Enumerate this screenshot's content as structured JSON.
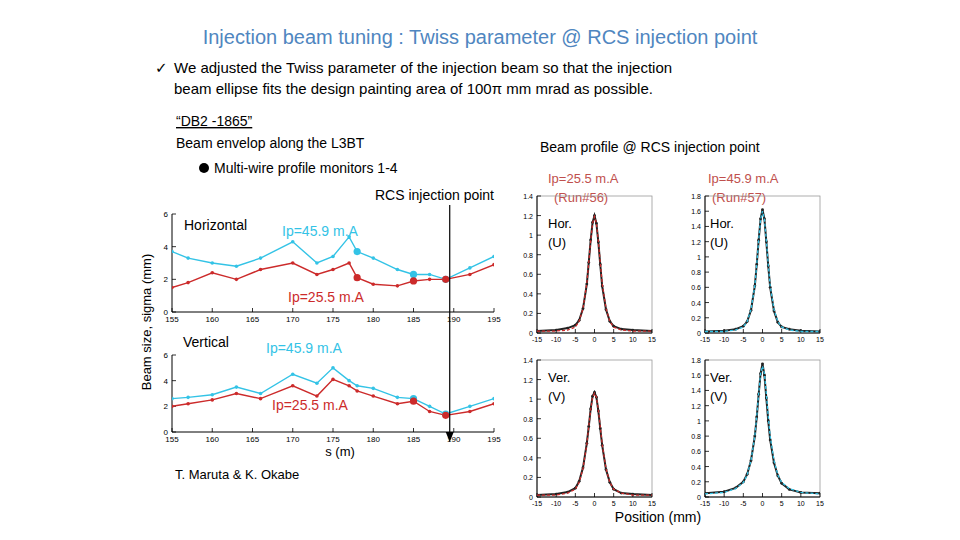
{
  "page": {
    "title": "Injection beam tuning : Twiss parameter @ RCS injection point",
    "check": "✓",
    "bullet": [
      "We adjusted the Twiss parameter of the injection beam so that the injection",
      "beam ellipse fits the design painting area of 100π mm mrad as possible."
    ],
    "envelope_heading": [
      "“DB2 -1865”",
      "Beam envelop along the L3BT"
    ],
    "monitor_legend": "Multi-wire profile monitors 1-4",
    "injection": {
      "text": "RCS injection point",
      "x": 189.5
    },
    "y_label": "Beam size, sigma (mm)",
    "x_label": "s (m)",
    "credit": "T. Maruta & K. Okabe",
    "profile_heading": "Beam profile @ RCS injection point",
    "profile_x_label": "Position (mm)",
    "columns": [
      [
        "Ip=25.5 m.A",
        "(Run#56)"
      ],
      [
        "Ip=45.9 m.A",
        "(Run#57)"
      ]
    ]
  },
  "chart_data": [
    {
      "type": "line",
      "title": "Horizontal",
      "x": [
        155,
        157,
        160,
        163,
        166,
        170,
        173,
        175,
        177,
        178,
        180,
        183,
        185,
        187,
        189,
        192,
        195
      ],
      "xlim": [
        155,
        195
      ],
      "xticks": [
        155,
        160,
        165,
        170,
        175,
        180,
        185,
        190,
        195
      ],
      "ylim": [
        0,
        6
      ],
      "yticks": [
        0,
        2,
        4,
        6
      ],
      "grid": false,
      "series": [
        {
          "name": "Ip=45.9 m.A",
          "color": "#33c3e6",
          "marker": "circle",
          "line_style": "solid",
          "values": [
            3.7,
            3.3,
            3.0,
            2.8,
            3.3,
            4.3,
            3.0,
            3.4,
            4.6,
            3.7,
            3.3,
            2.6,
            2.3,
            2.3,
            2.0,
            2.7,
            3.4
          ]
        },
        {
          "name": "Ip=25.5 m.A",
          "color": "#cc2b2b",
          "marker": "circle",
          "line_style": "solid",
          "values": [
            1.5,
            1.8,
            2.4,
            2.0,
            2.6,
            3.0,
            2.3,
            2.6,
            3.0,
            2.1,
            1.7,
            1.6,
            1.9,
            2.0,
            2.0,
            2.3,
            2.9
          ]
        },
        {
          "type": "scatter",
          "color": "#33c3e6",
          "marker": "circle",
          "values": [
            null,
            null,
            null,
            null,
            null,
            null,
            null,
            null,
            null,
            3.7,
            null,
            null,
            2.3,
            null,
            2.0,
            null,
            null
          ]
        },
        {
          "type": "scatter",
          "color": "#cc2b2b",
          "marker": "circle",
          "values": [
            null,
            null,
            null,
            null,
            null,
            null,
            null,
            null,
            null,
            2.1,
            null,
            null,
            1.9,
            null,
            2.0,
            null,
            null
          ]
        }
      ]
    },
    {
      "type": "line",
      "title": "Vertical",
      "x": [
        155,
        157,
        160,
        163,
        166,
        170,
        173,
        175,
        177,
        178,
        180,
        183,
        185,
        187,
        189,
        192,
        195
      ],
      "xlim": [
        155,
        195
      ],
      "xticks": [
        155,
        160,
        165,
        170,
        175,
        180,
        185,
        190,
        195
      ],
      "ylim": [
        0,
        6
      ],
      "yticks": [
        0,
        2,
        4,
        6
      ],
      "grid": false,
      "series": [
        {
          "name": "Ip=45.9 m.A",
          "color": "#33c3e6",
          "marker": "circle",
          "line_style": "solid",
          "values": [
            2.6,
            2.7,
            2.9,
            3.5,
            3.0,
            4.5,
            3.8,
            5.0,
            4.0,
            3.6,
            3.4,
            2.7,
            2.6,
            2.0,
            1.4,
            2.0,
            2.6
          ]
        },
        {
          "name": "Ip=25.5 m.A",
          "color": "#cc2b2b",
          "marker": "circle",
          "line_style": "solid",
          "values": [
            2.0,
            2.2,
            2.5,
            3.0,
            2.6,
            3.6,
            2.8,
            4.1,
            3.6,
            3.2,
            2.8,
            2.2,
            2.4,
            1.6,
            1.3,
            1.6,
            2.2
          ]
        },
        {
          "type": "scatter",
          "color": "#33c3e6",
          "marker": "circle",
          "values": [
            null,
            null,
            null,
            null,
            null,
            null,
            null,
            null,
            null,
            null,
            null,
            null,
            2.6,
            null,
            1.4,
            null,
            null
          ]
        },
        {
          "type": "scatter",
          "color": "#cc2b2b",
          "marker": "circle",
          "values": [
            null,
            null,
            null,
            null,
            null,
            null,
            null,
            null,
            null,
            null,
            null,
            null,
            2.4,
            null,
            1.3,
            null,
            null
          ]
        }
      ]
    },
    {
      "type": "line",
      "title": [
        "Hor.",
        "(U)"
      ],
      "x": [
        -15,
        -10,
        -7,
        -5,
        -4,
        -3,
        -2,
        -1.5,
        -1,
        -0.5,
        0,
        0.5,
        1,
        1.5,
        2,
        3,
        4,
        5,
        7,
        10,
        15
      ],
      "xlim": [
        -15,
        15
      ],
      "xticks": [
        -15,
        -10,
        -5,
        0,
        5,
        10,
        15
      ],
      "ylim": [
        0,
        1.4
      ],
      "yticks": [
        0,
        0.2,
        0.4,
        0.6,
        0.8,
        1,
        1.2,
        1.4
      ],
      "grid": false,
      "series": [
        {
          "color": "#222222",
          "marker": "circle",
          "line_style": "solid",
          "values": [
            0.02,
            0.03,
            0.05,
            0.08,
            0.13,
            0.25,
            0.5,
            0.72,
            0.95,
            1.13,
            1.2,
            1.12,
            0.93,
            0.7,
            0.48,
            0.24,
            0.12,
            0.07,
            0.04,
            0.03,
            0.02
          ]
        },
        {
          "color": "#cc2b2b",
          "line_style": "dashed",
          "values": [
            0.02,
            0.02,
            0.03,
            0.06,
            0.12,
            0.25,
            0.51,
            0.72,
            0.94,
            1.12,
            1.19,
            1.12,
            0.94,
            0.72,
            0.51,
            0.25,
            0.12,
            0.06,
            0.03,
            0.02,
            0.02
          ]
        }
      ]
    },
    {
      "type": "line",
      "title": [
        "Hor.",
        "(U)"
      ],
      "x": [
        -15,
        -10,
        -7,
        -5,
        -4,
        -3,
        -2,
        -1.5,
        -1,
        -0.5,
        0,
        0.5,
        1,
        1.5,
        2,
        3,
        4,
        5,
        7,
        10,
        15
      ],
      "xlim": [
        -15,
        15
      ],
      "xticks": [
        -15,
        -10,
        -5,
        0,
        5,
        10,
        15
      ],
      "ylim": [
        0,
        1.8
      ],
      "yticks": [
        0,
        0.2,
        0.4,
        0.6,
        0.8,
        1,
        1.2,
        1.4,
        1.6,
        1.8
      ],
      "grid": false,
      "series": [
        {
          "color": "#222222",
          "marker": "circle",
          "line_style": "solid",
          "values": [
            0.02,
            0.03,
            0.05,
            0.09,
            0.15,
            0.3,
            0.62,
            0.9,
            1.22,
            1.5,
            1.62,
            1.5,
            1.2,
            0.88,
            0.6,
            0.29,
            0.14,
            0.08,
            0.05,
            0.03,
            0.02
          ]
        },
        {
          "color": "#33c3e6",
          "line_style": "dashed",
          "values": [
            0.02,
            0.02,
            0.04,
            0.08,
            0.15,
            0.31,
            0.62,
            0.9,
            1.22,
            1.49,
            1.6,
            1.49,
            1.22,
            0.9,
            0.62,
            0.31,
            0.15,
            0.08,
            0.04,
            0.02,
            0.02
          ]
        }
      ]
    },
    {
      "type": "line",
      "title": [
        "Ver.",
        "(V)"
      ],
      "x": [
        -15,
        -10,
        -7,
        -5,
        -4,
        -3,
        -2,
        -1.5,
        -1,
        -0.5,
        0,
        0.5,
        1,
        1.5,
        2,
        3,
        4,
        5,
        7,
        10,
        15
      ],
      "xlim": [
        -15,
        15
      ],
      "xticks": [
        -15,
        -10,
        -5,
        0,
        5,
        10,
        15
      ],
      "ylim": [
        0,
        1.4
      ],
      "yticks": [
        0,
        0.2,
        0.4,
        0.6,
        0.8,
        1,
        1.2,
        1.4
      ],
      "grid": false,
      "series": [
        {
          "color": "#222222",
          "marker": "circle",
          "line_style": "solid",
          "values": [
            0.02,
            0.03,
            0.05,
            0.09,
            0.16,
            0.3,
            0.55,
            0.72,
            0.9,
            1.03,
            1.07,
            1.02,
            0.88,
            0.7,
            0.53,
            0.28,
            0.15,
            0.08,
            0.04,
            0.03,
            0.02
          ]
        },
        {
          "color": "#cc2b2b",
          "line_style": "dashed",
          "values": [
            0.02,
            0.02,
            0.04,
            0.08,
            0.15,
            0.29,
            0.54,
            0.72,
            0.89,
            1.02,
            1.06,
            1.02,
            0.89,
            0.72,
            0.54,
            0.29,
            0.15,
            0.08,
            0.04,
            0.02,
            0.02
          ]
        }
      ]
    },
    {
      "type": "line",
      "title": [
        "Ver.",
        "(V)"
      ],
      "x": [
        -15,
        -10,
        -7,
        -5,
        -4,
        -3,
        -2,
        -1.5,
        -1,
        -0.5,
        0,
        0.5,
        1,
        1.5,
        2,
        3,
        4,
        5,
        7,
        10,
        15
      ],
      "xlim": [
        -15,
        15
      ],
      "xticks": [
        -15,
        -10,
        -5,
        0,
        5,
        10,
        15
      ],
      "ylim": [
        0,
        1.8
      ],
      "yticks": [
        0,
        0.2,
        0.4,
        0.6,
        0.8,
        1,
        1.2,
        1.4,
        1.6,
        1.8
      ],
      "grid": false,
      "series": [
        {
          "color": "#222222",
          "marker": "circle",
          "line_style": "solid",
          "values": [
            0.05,
            0.07,
            0.12,
            0.2,
            0.3,
            0.48,
            0.8,
            1.05,
            1.35,
            1.62,
            1.75,
            1.6,
            1.3,
            1.0,
            0.75,
            0.45,
            0.28,
            0.18,
            0.1,
            0.06,
            0.05
          ]
        },
        {
          "color": "#33c3e6",
          "line_style": "dashed",
          "values": [
            0.04,
            0.06,
            0.11,
            0.19,
            0.29,
            0.48,
            0.8,
            1.06,
            1.36,
            1.62,
            1.72,
            1.62,
            1.36,
            1.06,
            0.8,
            0.48,
            0.29,
            0.19,
            0.11,
            0.06,
            0.04
          ]
        }
      ]
    }
  ]
}
